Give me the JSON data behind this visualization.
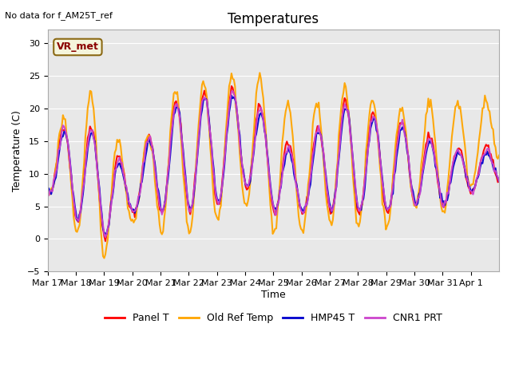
{
  "title": "Temperatures",
  "xlabel": "Time",
  "ylabel": "Temperature (C)",
  "ylim": [
    -5,
    32
  ],
  "yticks": [
    -5,
    0,
    5,
    10,
    15,
    20,
    25,
    30
  ],
  "bg_color": "#e8e8e8",
  "fig_color": "#ffffff",
  "annotation_text": "No data for f_AM25T_ref",
  "vr_label": "VR_met",
  "series": [
    {
      "label": "Panel T",
      "color": "#ff0000",
      "lw": 1.5
    },
    {
      "label": "Old Ref Temp",
      "color": "#ffa500",
      "lw": 1.5
    },
    {
      "label": "HMP45 T",
      "color": "#0000cc",
      "lw": 1.5
    },
    {
      "label": "CNR1 PRT",
      "color": "#cc44cc",
      "lw": 1.5
    }
  ],
  "x_tick_labels": [
    "Mar 17",
    "Mar 18",
    "Mar 19",
    "Mar 20",
    "Mar 21",
    "Mar 22",
    "Mar 23",
    "Mar 24",
    "Mar 25",
    "Mar 26",
    "Mar 27",
    "Mar 28",
    "Mar 29",
    "Mar 30",
    "Mar 31",
    "Apr 1"
  ],
  "n_points": 384,
  "n_days": 16
}
